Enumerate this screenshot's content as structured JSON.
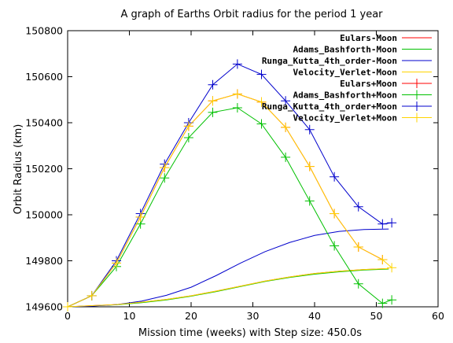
{
  "chart_data": {
    "type": "line",
    "title": "A graph of Earths Orbit radius for the period 1 year",
    "xlabel": "Mission time (weeks) with Step size: 450.0s",
    "ylabel": "Orbit Radius (km)",
    "xlim": [
      0,
      60
    ],
    "ylim": [
      149600,
      150800
    ],
    "xticks": [
      0,
      10,
      20,
      30,
      40,
      50,
      60
    ],
    "yticks": [
      149600,
      149800,
      150000,
      150200,
      150400,
      150600,
      150800
    ],
    "grid": false,
    "legend_position": "top-right",
    "series": [
      {
        "name": "Eulars-Moon",
        "color": "#ff0000",
        "marker": "none",
        "x": [
          0,
          4,
          8,
          12,
          16,
          20,
          24,
          28,
          32,
          36,
          40,
          44,
          48,
          52
        ],
        "y": [
          149600,
          149605,
          149610,
          149620,
          149632,
          149648,
          149668,
          149690,
          149712,
          149730,
          149745,
          149755,
          149762,
          149766
        ]
      },
      {
        "name": "Adams_Bashforth-Moon",
        "color": "#00c000",
        "marker": "none",
        "x": [
          0,
          4,
          8,
          12,
          16,
          20,
          24,
          28,
          32,
          36,
          40,
          44,
          48,
          52
        ],
        "y": [
          149600,
          149604,
          149609,
          149618,
          149630,
          149646,
          149666,
          149688,
          149710,
          149728,
          149742,
          149752,
          149760,
          149764
        ]
      },
      {
        "name": "Runga_Kutta_4th_order-Moon",
        "color": "#0000cc",
        "marker": "none",
        "x": [
          0,
          4,
          8,
          12,
          16,
          20,
          24,
          28,
          32,
          36,
          40,
          44,
          48,
          52
        ],
        "y": [
          149600,
          149603,
          149610,
          149625,
          149650,
          149685,
          149735,
          149790,
          149840,
          149880,
          149910,
          149928,
          149936,
          149938
        ]
      },
      {
        "name": "Velocity_Verlet-Moon",
        "color": "#ffd400",
        "marker": "none",
        "x": [
          0,
          4,
          8,
          12,
          16,
          20,
          24,
          28,
          32,
          36,
          40,
          44,
          48,
          52
        ],
        "y": [
          149600,
          149605,
          149610,
          149620,
          149632,
          149648,
          149668,
          149690,
          149712,
          149730,
          149745,
          149755,
          149762,
          149766
        ]
      },
      {
        "name": "Eulars+Moon",
        "color": "#ff0000",
        "marker": "plus",
        "x": [
          0,
          3.9,
          7.9,
          11.8,
          15.7,
          19.6,
          23.5,
          27.5,
          31.4,
          35.3,
          39.2,
          43.2,
          47.1,
          51
        ],
        "y": [
          149600,
          149648,
          149790,
          149990,
          150205,
          150385,
          150495,
          150525,
          150490,
          150380,
          150210,
          150005,
          149860,
          149805
        ]
      },
      {
        "name": "Adams_Bashforth+Moon",
        "color": "#00c000",
        "marker": "plus",
        "x": [
          0,
          3.9,
          7.9,
          11.8,
          15.7,
          19.6,
          23.5,
          27.5,
          31.4,
          35.3,
          39.2,
          43.2,
          47.1,
          51,
          52.5
        ],
        "y": [
          149600,
          149648,
          149775,
          149960,
          150160,
          150335,
          150445,
          150465,
          150395,
          150250,
          150060,
          149865,
          149700,
          149615,
          149630
        ]
      },
      {
        "name": "Runga_Kutta_4th_order+Moon",
        "color": "#0000cc",
        "marker": "plus",
        "x": [
          0,
          3.9,
          7.9,
          11.8,
          15.7,
          19.6,
          23.5,
          27.5,
          31.4,
          35.3,
          39.2,
          43.2,
          47.1,
          51,
          52.5
        ],
        "y": [
          149600,
          149648,
          149800,
          150005,
          150220,
          150400,
          150565,
          150655,
          150610,
          150495,
          150370,
          150165,
          150035,
          149960,
          149965
        ]
      },
      {
        "name": "Velocity_Verlet+Moon",
        "color": "#ffd400",
        "marker": "plus",
        "x": [
          0,
          3.9,
          7.9,
          11.8,
          15.7,
          19.6,
          23.5,
          27.5,
          31.4,
          35.3,
          39.2,
          43.2,
          47.1,
          51,
          52.5
        ],
        "y": [
          149600,
          149648,
          149790,
          149990,
          150205,
          150385,
          150495,
          150525,
          150490,
          150380,
          150210,
          150005,
          149860,
          149805,
          149770
        ]
      }
    ]
  }
}
